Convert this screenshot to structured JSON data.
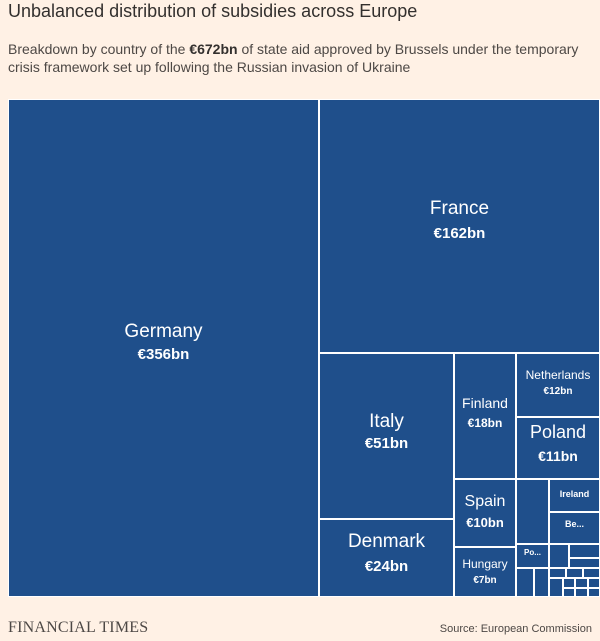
{
  "title": "Unbalanced distribution of subsidies across Europe",
  "subtitle": {
    "before": "Breakdown by country of the ",
    "bold": "€672bn",
    "after": " of state aid approved by Brussels under the temporary crisis framework set up following the Russian invasion of Ukraine"
  },
  "footer": {
    "logo": "FINANCIAL TIMES",
    "source": "Source: European Commission"
  },
  "colors": {
    "background": "#fff1e5",
    "tile": "#1f4f8b",
    "tile_border": "#ffffff",
    "tile_text": "#ffffff"
  },
  "chart_data": {
    "type": "treemap",
    "unit": "€bn",
    "total": 672,
    "items": [
      {
        "label": "Germany",
        "value_label": "€356bn",
        "value": 356
      },
      {
        "label": "France",
        "value_label": "€162bn",
        "value": 162
      },
      {
        "label": "Italy",
        "value_label": "€51bn",
        "value": 51
      },
      {
        "label": "Denmark",
        "value_label": "€24bn",
        "value": 24
      },
      {
        "label": "Finland",
        "value_label": "€18bn",
        "value": 18
      },
      {
        "label": "Netherlands",
        "value_label": "€12bn",
        "value": 12
      },
      {
        "label": "Poland",
        "value_label": "€11bn",
        "value": 11
      },
      {
        "label": "Spain",
        "value_label": "€10bn",
        "value": 10
      },
      {
        "label": "Hungary",
        "value_label": "€7bn",
        "value": 7
      },
      {
        "label": "Ireland",
        "value_label": "",
        "value": null
      },
      {
        "label": "Be...",
        "value_label": "",
        "value": null
      },
      {
        "label": "Po...",
        "value_label": "",
        "value": null
      }
    ]
  }
}
